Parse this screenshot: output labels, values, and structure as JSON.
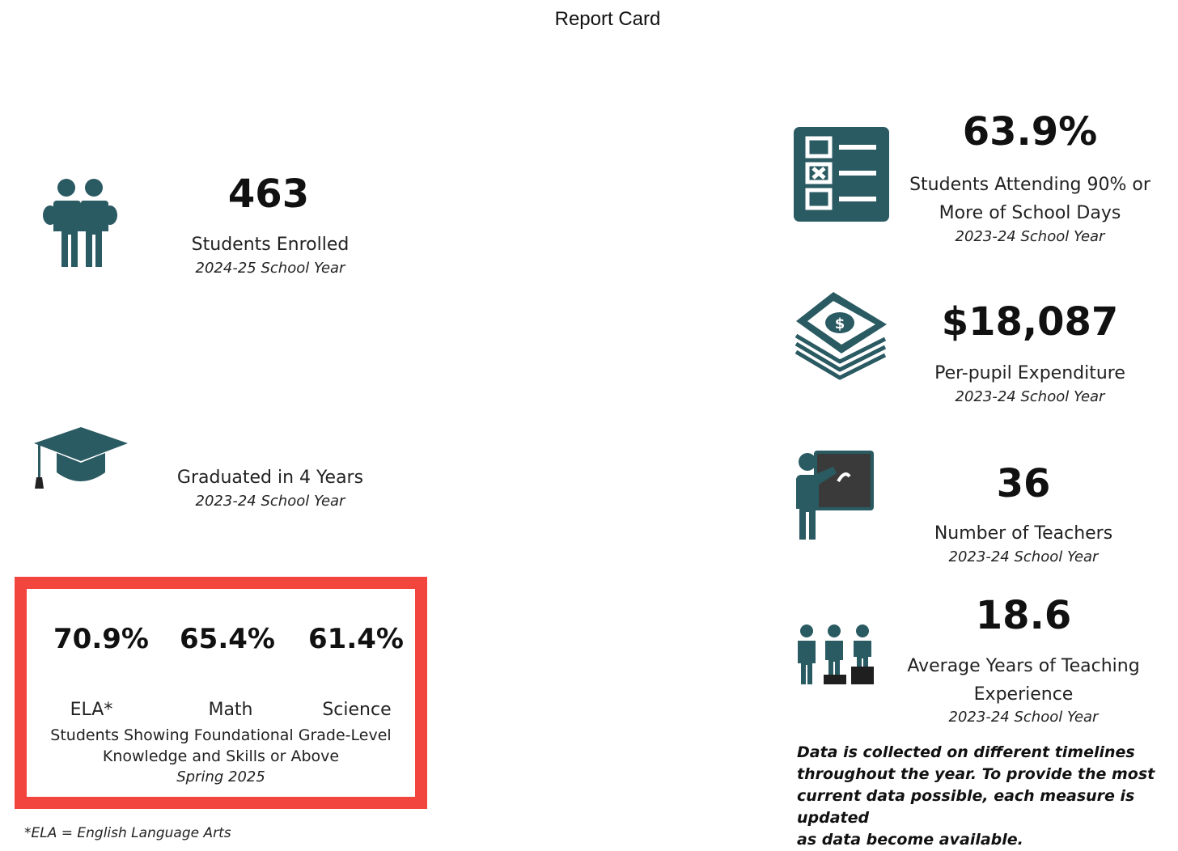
{
  "header": {
    "title": "Report Card"
  },
  "colors": {
    "icon": "#2a5a62",
    "highlight_border": "#f1453d",
    "board": "#3a3a3a"
  },
  "enrolled": {
    "icon": "students-icon",
    "value": "463",
    "label": "Students Enrolled",
    "period": "2024-25 School Year"
  },
  "graduated": {
    "icon": "graduation-cap-icon",
    "value": "",
    "label": "Graduated in 4 Years",
    "period": "2023-24 School Year"
  },
  "proficiency": {
    "items": [
      {
        "value": "70.9%",
        "subject": "ELA*"
      },
      {
        "value": "65.4%",
        "subject": "Math"
      },
      {
        "value": "61.4%",
        "subject": "Science"
      }
    ],
    "label_line1": "Students Showing Foundational Grade-Level",
    "label_line2": "Knowledge and Skills or Above",
    "period": "Spring 2025"
  },
  "footnote": "*ELA = English Language Arts",
  "attendance": {
    "icon": "checklist-icon",
    "value": "63.9%",
    "label_line1": "Students Attending 90% or",
    "label_line2": "More of School Days",
    "period": "2023-24 School Year"
  },
  "expenditure": {
    "icon": "money-stack-icon",
    "value": "$18,087",
    "label": "Per-pupil Expenditure",
    "period": "2023-24 School Year"
  },
  "teachers": {
    "icon": "teacher-board-icon",
    "value": "36",
    "label": "Number of Teachers",
    "period": "2023-24 School Year"
  },
  "experience": {
    "icon": "experience-podium-icon",
    "value": "18.6",
    "label_line1": "Average Years of Teaching",
    "label_line2": "Experience",
    "period": "2023-24 School Year"
  },
  "data_note": {
    "line1": "Data is collected on different timelines",
    "line2": "throughout the year. To provide the most",
    "line3": "current data possible, each measure is updated",
    "line4": "as data become available."
  }
}
